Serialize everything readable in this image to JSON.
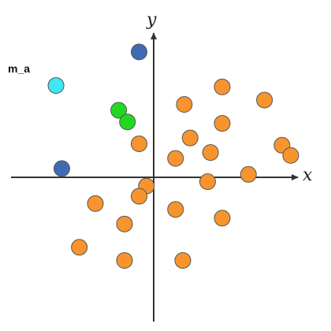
{
  "axes": {
    "x_label": "x",
    "y_label": "y",
    "axis_color": "#333333"
  },
  "labeled_point": {
    "label": "m_a"
  },
  "colors": {
    "orange": "#F7942E",
    "blue": "#3F6AB4",
    "green": "#22D922",
    "cyan": "#3FE6F5",
    "stroke": "#555555"
  },
  "chart_data": {
    "type": "scatter",
    "xlabel": "x",
    "ylabel": "y",
    "xlim": [
      -10,
      10
    ],
    "ylim": [
      -10,
      10
    ],
    "grid": false,
    "groups": [
      {
        "color": "orange",
        "points": [
          [
            4.7,
            6.2
          ],
          [
            7.6,
            5.3
          ],
          [
            2.1,
            5.0
          ],
          [
            4.7,
            3.7
          ],
          [
            -1.0,
            2.3
          ],
          [
            2.5,
            2.7
          ],
          [
            3.9,
            1.7
          ],
          [
            1.5,
            1.3
          ],
          [
            8.8,
            2.2
          ],
          [
            9.4,
            1.5
          ],
          [
            6.5,
            0.2
          ],
          [
            3.7,
            -0.3
          ],
          [
            -0.5,
            -0.6
          ],
          [
            -1.0,
            -1.3
          ],
          [
            -4.0,
            -1.8
          ],
          [
            1.5,
            -2.2
          ],
          [
            4.7,
            -2.8
          ],
          [
            -2.0,
            -3.2
          ],
          [
            -5.1,
            -4.8
          ],
          [
            -2.0,
            -5.7
          ],
          [
            2.0,
            -5.7
          ]
        ]
      },
      {
        "color": "blue",
        "points": [
          [
            -1.0,
            8.6
          ],
          [
            -6.3,
            0.6
          ]
        ]
      },
      {
        "color": "green",
        "points": [
          [
            -2.4,
            4.6
          ],
          [
            -1.8,
            3.8
          ]
        ]
      },
      {
        "color": "cyan",
        "points": [
          [
            -6.7,
            6.3
          ]
        ]
      }
    ]
  }
}
